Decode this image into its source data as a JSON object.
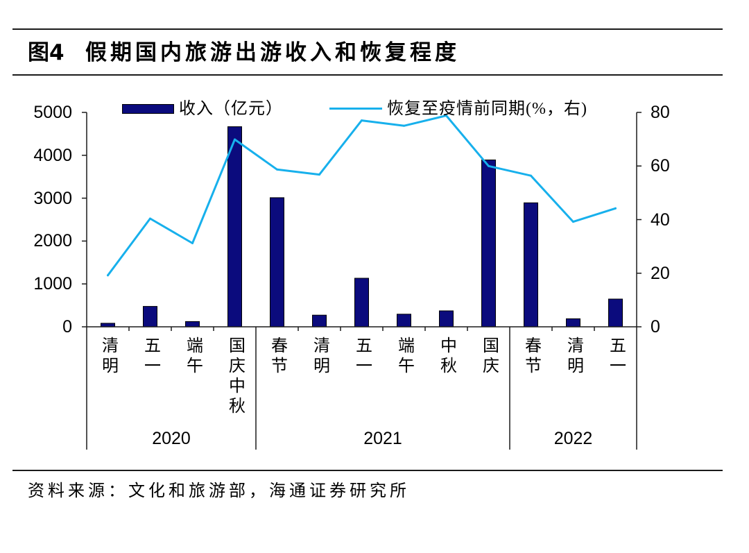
{
  "header": {
    "figure_label": "图4"
  },
  "chart_data": {
    "type": "bar",
    "title": "假期国内旅游出游收入和恢复程度",
    "groups": [
      {
        "label": "2020",
        "categories": [
          "清明",
          "五一",
          "端午",
          "国庆中秋"
        ]
      },
      {
        "label": "2021",
        "categories": [
          "春节",
          "清明",
          "五一",
          "端午",
          "中秋",
          "国庆"
        ]
      },
      {
        "label": "2022",
        "categories": [
          "春节",
          "清明",
          "五一"
        ]
      }
    ],
    "series": [
      {
        "name": "收入（亿元）",
        "type": "bar",
        "axis": "left",
        "color": "#0b0b7d",
        "values": [
          83,
          476,
          123,
          4666,
          3011,
          272,
          1132,
          294,
          372,
          3891,
          2892,
          188,
          647
        ]
      },
      {
        "name": "恢复至疫情前同期(%，右)",
        "type": "line",
        "axis": "right",
        "color": "#17b0ec",
        "values": [
          19.2,
          40.4,
          31.2,
          69.9,
          58.7,
          56.8,
          77.0,
          75.0,
          78.8,
          60.0,
          56.4,
          39.2,
          44.2
        ]
      }
    ],
    "y_left": {
      "ylim": [
        0,
        5000
      ],
      "ticks": [
        0,
        1000,
        2000,
        3000,
        4000,
        5000
      ]
    },
    "y_right": {
      "ylim": [
        0,
        80
      ],
      "ticks": [
        0,
        20,
        40,
        60,
        80
      ]
    },
    "grid": false,
    "legend": "top"
  },
  "footer": {
    "source": "资料来源：文化和旅游部，海通证券研究所"
  }
}
